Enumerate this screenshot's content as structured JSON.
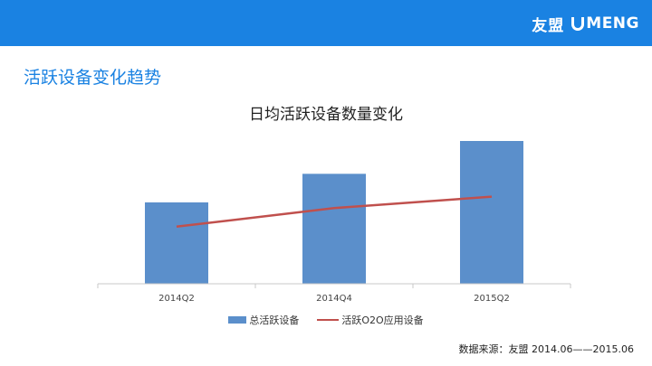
{
  "header": {
    "brand_cn": "友盟",
    "brand_en": "MENG",
    "brand_color": "#1a82e2"
  },
  "section_title": "活跃设备变化趋势",
  "source_note": "数据来源：友盟  2014.06——2015.06",
  "chart_data": {
    "type": "bar",
    "title": "日均活跃设备数量变化",
    "categories": [
      "2014Q2",
      "2014Q4",
      "2015Q2"
    ],
    "series": [
      {
        "name": "总活跃设备",
        "type": "bar",
        "color": "#5b8fcb",
        "values": [
          57,
          77,
          100
        ]
      },
      {
        "name": "活跃O2O应用设备",
        "type": "line",
        "color": "#c0504d",
        "values": [
          40,
          53,
          61
        ]
      }
    ],
    "ylim": [
      0,
      100
    ],
    "grid": false,
    "y_axis_visible": false,
    "legend_position": "bottom"
  }
}
